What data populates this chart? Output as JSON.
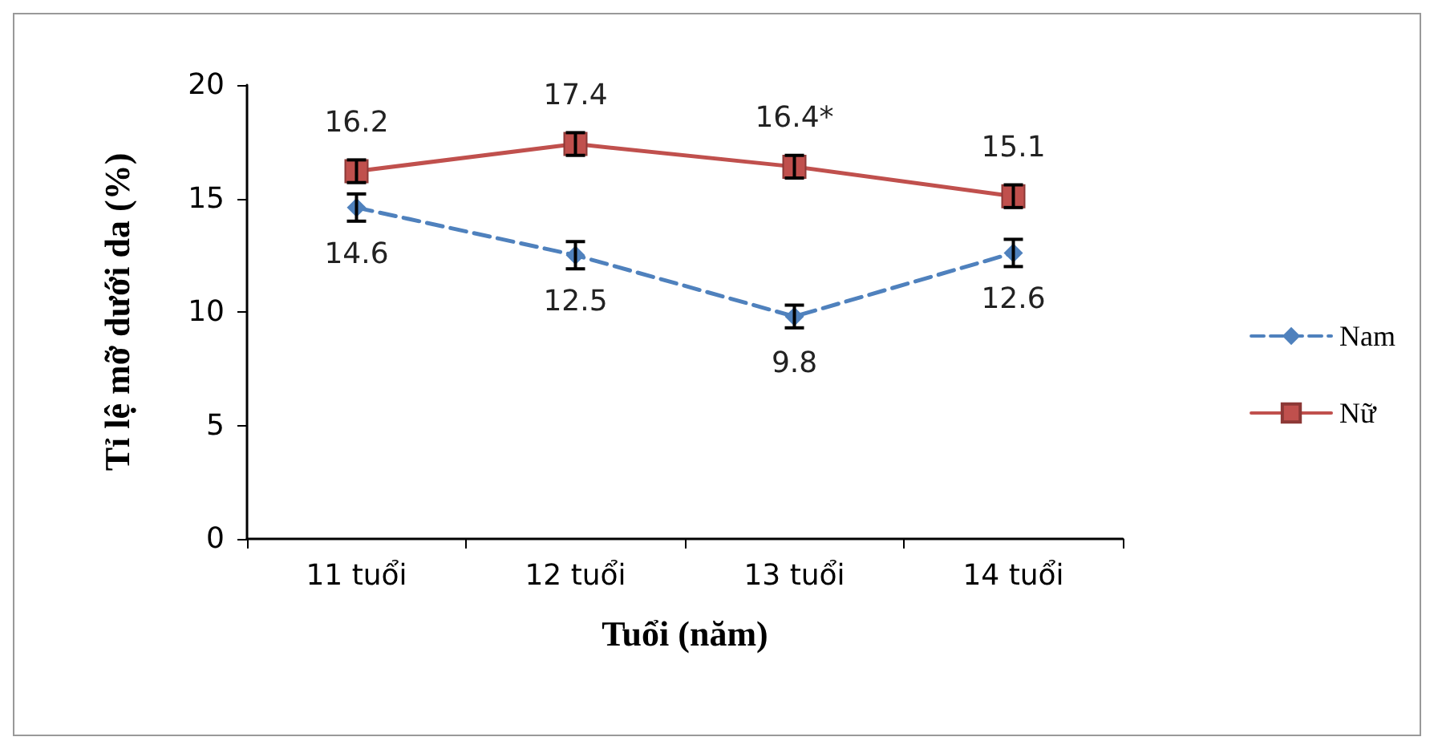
{
  "chart_data": {
    "type": "line",
    "ylabel": "Tỉ lệ mỡ dưới da (%)",
    "xlabel": "Tuổi (năm)",
    "categories": [
      "11 tuổi",
      "12 tuổi",
      "13 tuổi",
      "14 tuổi"
    ],
    "series": [
      {
        "name": "Nam",
        "color": "#4f81bd",
        "values": [
          14.6,
          12.5,
          9.8,
          12.6
        ],
        "errors": [
          0.6,
          0.6,
          0.5,
          0.6
        ],
        "value_labels": [
          "14.6",
          "12.5",
          "9.8",
          "12.6"
        ],
        "marker": "diamond",
        "line_style": "dashed"
      },
      {
        "name": "Nữ",
        "color": "#c0504d",
        "values": [
          16.2,
          17.4,
          16.4,
          15.1
        ],
        "errors": [
          0.5,
          0.5,
          0.5,
          0.5
        ],
        "value_labels": [
          "16.2",
          "17.4",
          "16.4*",
          "15.1"
        ],
        "marker": "square",
        "line_style": "solid"
      }
    ],
    "ylim": [
      0,
      20
    ],
    "yticks": [
      0,
      5,
      10,
      15,
      20
    ],
    "grid": false,
    "legend": "right"
  }
}
